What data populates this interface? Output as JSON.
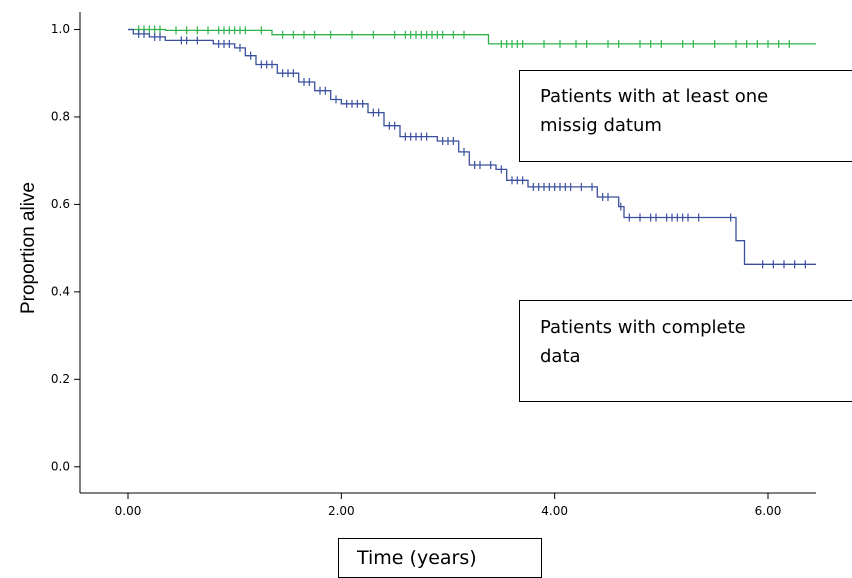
{
  "chart_data": {
    "type": "line",
    "title": "",
    "xlabel": "Time (years)",
    "ylabel": "Proportion alive",
    "xlim": [
      -0.45,
      6.45
    ],
    "ylim": [
      -0.06,
      1.04
    ],
    "x_ticks": [
      0,
      2,
      4,
      6
    ],
    "x_tick_labels": [
      "0.00",
      "2.00",
      "4.00",
      "6.00"
    ],
    "y_ticks": [
      0,
      0.2,
      0.4,
      0.6,
      0.8,
      1.0
    ],
    "y_tick_labels": [
      "0.0",
      "0.2",
      "0.4",
      "0.6",
      "0.8",
      "1.0"
    ],
    "grid": false,
    "annotations": [
      "Patients with at least one missig datum",
      "Patients with complete data"
    ],
    "annotation_lines": [
      [
        "Patients with at least one",
        "missig datum"
      ],
      [
        "Patients with complete",
        "data"
      ]
    ],
    "series": [
      {
        "color": "#2eb34a",
        "steps": [
          [
            0,
            1.0
          ],
          [
            0.35,
            1.0
          ],
          [
            0.35,
            0.998
          ],
          [
            1.35,
            0.998
          ],
          [
            1.35,
            0.988
          ],
          [
            3.38,
            0.988
          ],
          [
            3.38,
            0.967
          ],
          [
            6.45,
            0.967
          ]
        ],
        "censored": [
          [
            0.1,
            1.0
          ],
          [
            0.15,
            1.0
          ],
          [
            0.2,
            1.0
          ],
          [
            0.25,
            1.0
          ],
          [
            0.3,
            1.0
          ],
          [
            0.45,
            0.998
          ],
          [
            0.55,
            0.998
          ],
          [
            0.65,
            0.998
          ],
          [
            0.75,
            0.998
          ],
          [
            0.85,
            0.998
          ],
          [
            0.9,
            0.998
          ],
          [
            0.95,
            0.998
          ],
          [
            1.0,
            0.998
          ],
          [
            1.05,
            0.998
          ],
          [
            1.1,
            0.998
          ],
          [
            1.25,
            0.998
          ],
          [
            1.45,
            0.988
          ],
          [
            1.55,
            0.988
          ],
          [
            1.65,
            0.988
          ],
          [
            1.75,
            0.988
          ],
          [
            1.9,
            0.988
          ],
          [
            2.1,
            0.988
          ],
          [
            2.3,
            0.988
          ],
          [
            2.5,
            0.988
          ],
          [
            2.6,
            0.988
          ],
          [
            2.65,
            0.988
          ],
          [
            2.7,
            0.988
          ],
          [
            2.75,
            0.988
          ],
          [
            2.8,
            0.988
          ],
          [
            2.85,
            0.988
          ],
          [
            2.9,
            0.988
          ],
          [
            2.95,
            0.988
          ],
          [
            3.05,
            0.988
          ],
          [
            3.15,
            0.988
          ],
          [
            3.5,
            0.967
          ],
          [
            3.55,
            0.967
          ],
          [
            3.6,
            0.967
          ],
          [
            3.65,
            0.967
          ],
          [
            3.7,
            0.967
          ],
          [
            3.9,
            0.967
          ],
          [
            4.05,
            0.967
          ],
          [
            4.2,
            0.967
          ],
          [
            4.3,
            0.967
          ],
          [
            4.5,
            0.967
          ],
          [
            4.6,
            0.967
          ],
          [
            4.8,
            0.967
          ],
          [
            4.9,
            0.967
          ],
          [
            5.0,
            0.967
          ],
          [
            5.2,
            0.967
          ],
          [
            5.3,
            0.967
          ],
          [
            5.5,
            0.967
          ],
          [
            5.7,
            0.967
          ],
          [
            5.8,
            0.967
          ],
          [
            5.9,
            0.967
          ],
          [
            6.0,
            0.967
          ],
          [
            6.1,
            0.967
          ],
          [
            6.2,
            0.967
          ]
        ]
      },
      {
        "color": "#3a4f9e",
        "steps": [
          [
            0,
            1.0
          ],
          [
            0.05,
            1.0
          ],
          [
            0.05,
            0.99
          ],
          [
            0.2,
            0.99
          ],
          [
            0.2,
            0.983
          ],
          [
            0.35,
            0.983
          ],
          [
            0.35,
            0.975
          ],
          [
            0.8,
            0.975
          ],
          [
            0.8,
            0.967
          ],
          [
            1.0,
            0.967
          ],
          [
            1.0,
            0.958
          ],
          [
            1.1,
            0.958
          ],
          [
            1.1,
            0.94
          ],
          [
            1.2,
            0.94
          ],
          [
            1.2,
            0.92
          ],
          [
            1.4,
            0.92
          ],
          [
            1.4,
            0.9
          ],
          [
            1.6,
            0.9
          ],
          [
            1.6,
            0.88
          ],
          [
            1.75,
            0.88
          ],
          [
            1.75,
            0.86
          ],
          [
            1.9,
            0.86
          ],
          [
            1.9,
            0.84
          ],
          [
            2.0,
            0.84
          ],
          [
            2.0,
            0.83
          ],
          [
            2.25,
            0.83
          ],
          [
            2.25,
            0.81
          ],
          [
            2.4,
            0.81
          ],
          [
            2.4,
            0.78
          ],
          [
            2.55,
            0.78
          ],
          [
            2.55,
            0.755
          ],
          [
            2.9,
            0.755
          ],
          [
            2.9,
            0.745
          ],
          [
            3.1,
            0.745
          ],
          [
            3.1,
            0.72
          ],
          [
            3.2,
            0.72
          ],
          [
            3.2,
            0.69
          ],
          [
            3.45,
            0.69
          ],
          [
            3.45,
            0.68
          ],
          [
            3.55,
            0.68
          ],
          [
            3.55,
            0.655
          ],
          [
            3.75,
            0.655
          ],
          [
            3.75,
            0.64
          ],
          [
            4.4,
            0.64
          ],
          [
            4.4,
            0.617
          ],
          [
            4.6,
            0.617
          ],
          [
            4.6,
            0.595
          ],
          [
            4.65,
            0.595
          ],
          [
            4.65,
            0.57
          ],
          [
            5.7,
            0.57
          ],
          [
            5.7,
            0.517
          ],
          [
            5.78,
            0.517
          ],
          [
            5.78,
            0.463
          ],
          [
            6.45,
            0.463
          ]
        ],
        "censored": [
          [
            0.1,
            0.99
          ],
          [
            0.15,
            0.99
          ],
          [
            0.25,
            0.983
          ],
          [
            0.3,
            0.983
          ],
          [
            0.5,
            0.975
          ],
          [
            0.55,
            0.975
          ],
          [
            0.65,
            0.975
          ],
          [
            0.85,
            0.967
          ],
          [
            0.9,
            0.967
          ],
          [
            0.95,
            0.967
          ],
          [
            1.05,
            0.958
          ],
          [
            1.15,
            0.94
          ],
          [
            1.25,
            0.92
          ],
          [
            1.3,
            0.92
          ],
          [
            1.35,
            0.92
          ],
          [
            1.45,
            0.9
          ],
          [
            1.5,
            0.9
          ],
          [
            1.55,
            0.9
          ],
          [
            1.65,
            0.88
          ],
          [
            1.7,
            0.88
          ],
          [
            1.8,
            0.86
          ],
          [
            1.85,
            0.86
          ],
          [
            1.95,
            0.84
          ],
          [
            2.05,
            0.83
          ],
          [
            2.1,
            0.83
          ],
          [
            2.15,
            0.83
          ],
          [
            2.2,
            0.83
          ],
          [
            2.3,
            0.81
          ],
          [
            2.35,
            0.81
          ],
          [
            2.45,
            0.78
          ],
          [
            2.5,
            0.78
          ],
          [
            2.6,
            0.755
          ],
          [
            2.65,
            0.755
          ],
          [
            2.7,
            0.755
          ],
          [
            2.75,
            0.755
          ],
          [
            2.8,
            0.755
          ],
          [
            2.95,
            0.745
          ],
          [
            3.0,
            0.745
          ],
          [
            3.05,
            0.745
          ],
          [
            3.15,
            0.72
          ],
          [
            3.25,
            0.69
          ],
          [
            3.3,
            0.69
          ],
          [
            3.4,
            0.69
          ],
          [
            3.5,
            0.68
          ],
          [
            3.6,
            0.655
          ],
          [
            3.65,
            0.655
          ],
          [
            3.7,
            0.655
          ],
          [
            3.8,
            0.64
          ],
          [
            3.85,
            0.64
          ],
          [
            3.9,
            0.64
          ],
          [
            3.95,
            0.64
          ],
          [
            4.0,
            0.64
          ],
          [
            4.05,
            0.64
          ],
          [
            4.1,
            0.64
          ],
          [
            4.15,
            0.64
          ],
          [
            4.25,
            0.64
          ],
          [
            4.35,
            0.64
          ],
          [
            4.45,
            0.617
          ],
          [
            4.5,
            0.617
          ],
          [
            4.62,
            0.595
          ],
          [
            4.7,
            0.57
          ],
          [
            4.8,
            0.57
          ],
          [
            4.9,
            0.57
          ],
          [
            4.95,
            0.57
          ],
          [
            5.05,
            0.57
          ],
          [
            5.1,
            0.57
          ],
          [
            5.15,
            0.57
          ],
          [
            5.2,
            0.57
          ],
          [
            5.25,
            0.57
          ],
          [
            5.35,
            0.57
          ],
          [
            5.65,
            0.57
          ],
          [
            5.95,
            0.463
          ],
          [
            6.05,
            0.463
          ],
          [
            6.15,
            0.463
          ],
          [
            6.25,
            0.463
          ],
          [
            6.35,
            0.463
          ]
        ]
      }
    ]
  }
}
